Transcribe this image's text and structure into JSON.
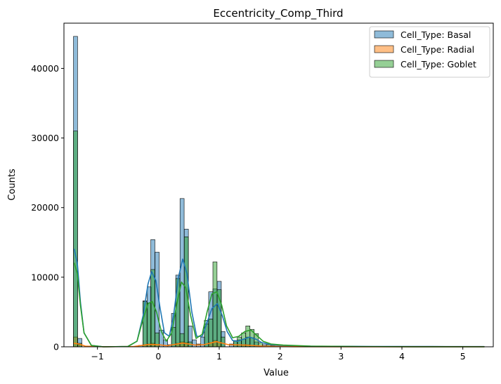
{
  "chart_data": {
    "type": "histogram",
    "title": "Eccentricity_Comp_Third",
    "xlabel": "Value",
    "ylabel": "Counts",
    "xlim": [
      -1.55,
      5.5
    ],
    "ylim": [
      0,
      46500
    ],
    "x_ticks": [
      -1,
      0,
      1,
      2,
      3,
      4,
      5
    ],
    "y_ticks": [
      0,
      10000,
      20000,
      30000,
      40000
    ],
    "legend_position": "upper right",
    "bin_width": 0.0676,
    "series": [
      {
        "name": "Cell_Type: Basal",
        "color": "#1f77b4",
        "bins": [
          {
            "x": -1.36,
            "count": 44600
          },
          {
            "x": -1.29,
            "count": 1200
          },
          {
            "x": -0.29,
            "count": 200
          },
          {
            "x": -0.22,
            "count": 6600
          },
          {
            "x": -0.15,
            "count": 8600
          },
          {
            "x": -0.09,
            "count": 15400
          },
          {
            "x": -0.02,
            "count": 13600
          },
          {
            "x": 0.05,
            "count": 2400
          },
          {
            "x": 0.12,
            "count": 1000
          },
          {
            "x": 0.19,
            "count": 300
          },
          {
            "x": 0.25,
            "count": 4800
          },
          {
            "x": 0.32,
            "count": 10300
          },
          {
            "x": 0.39,
            "count": 21300
          },
          {
            "x": 0.46,
            "count": 16900
          },
          {
            "x": 0.52,
            "count": 3000
          },
          {
            "x": 0.59,
            "count": 1000
          },
          {
            "x": 0.66,
            "count": 400
          },
          {
            "x": 0.73,
            "count": 1400
          },
          {
            "x": 0.79,
            "count": 3800
          },
          {
            "x": 0.86,
            "count": 7900
          },
          {
            "x": 0.93,
            "count": 8300
          },
          {
            "x": 1.0,
            "count": 9400
          },
          {
            "x": 1.06,
            "count": 2200
          },
          {
            "x": 1.2,
            "count": 400
          },
          {
            "x": 1.27,
            "count": 800
          },
          {
            "x": 1.33,
            "count": 1000
          },
          {
            "x": 1.4,
            "count": 1100
          },
          {
            "x": 1.47,
            "count": 1400
          },
          {
            "x": 1.54,
            "count": 1300
          },
          {
            "x": 1.61,
            "count": 700
          },
          {
            "x": 1.74,
            "count": 300
          },
          {
            "x": 1.88,
            "count": 200
          },
          {
            "x": 2.15,
            "count": 150
          },
          {
            "x": 2.5,
            "count": 100
          },
          {
            "x": 3.0,
            "count": 80
          },
          {
            "x": 4.0,
            "count": 50
          },
          {
            "x": 5.3,
            "count": 40
          }
        ],
        "kde": [
          {
            "x": -1.38,
            "y": 14000
          },
          {
            "x": -1.33,
            "y": 12000
          },
          {
            "x": -1.28,
            "y": 6500
          },
          {
            "x": -1.22,
            "y": 2000
          },
          {
            "x": -1.1,
            "y": 200
          },
          {
            "x": -0.9,
            "y": 0
          },
          {
            "x": -0.5,
            "y": 50
          },
          {
            "x": -0.35,
            "y": 800
          },
          {
            "x": -0.25,
            "y": 4500
          },
          {
            "x": -0.17,
            "y": 9000
          },
          {
            "x": -0.11,
            "y": 10800
          },
          {
            "x": -0.04,
            "y": 9500
          },
          {
            "x": 0.03,
            "y": 5500
          },
          {
            "x": 0.1,
            "y": 2000
          },
          {
            "x": 0.18,
            "y": 1500
          },
          {
            "x": 0.25,
            "y": 4500
          },
          {
            "x": 0.33,
            "y": 10000
          },
          {
            "x": 0.4,
            "y": 12600
          },
          {
            "x": 0.47,
            "y": 10500
          },
          {
            "x": 0.55,
            "y": 5000
          },
          {
            "x": 0.63,
            "y": 1500
          },
          {
            "x": 0.72,
            "y": 1500
          },
          {
            "x": 0.8,
            "y": 3500
          },
          {
            "x": 0.88,
            "y": 5500
          },
          {
            "x": 0.97,
            "y": 6200
          },
          {
            "x": 1.05,
            "y": 4500
          },
          {
            "x": 1.13,
            "y": 2200
          },
          {
            "x": 1.22,
            "y": 900
          },
          {
            "x": 1.3,
            "y": 800
          },
          {
            "x": 1.4,
            "y": 1100
          },
          {
            "x": 1.5,
            "y": 1400
          },
          {
            "x": 1.6,
            "y": 1100
          },
          {
            "x": 1.7,
            "y": 600
          },
          {
            "x": 1.85,
            "y": 300
          },
          {
            "x": 2.1,
            "y": 120
          },
          {
            "x": 2.6,
            "y": 70
          },
          {
            "x": 3.5,
            "y": 50
          },
          {
            "x": 4.5,
            "y": 40
          },
          {
            "x": 5.35,
            "y": 30
          }
        ]
      },
      {
        "name": "Cell_Type: Radial",
        "color": "#ff7f0e",
        "bins": [
          {
            "x": -1.36,
            "count": 1400
          },
          {
            "x": -1.29,
            "count": 300
          },
          {
            "x": -0.22,
            "count": 300
          },
          {
            "x": -0.15,
            "count": 400
          },
          {
            "x": -0.09,
            "count": 500
          },
          {
            "x": -0.02,
            "count": 300
          },
          {
            "x": 0.32,
            "count": 500
          },
          {
            "x": 0.39,
            "count": 700
          },
          {
            "x": 0.46,
            "count": 600
          },
          {
            "x": 0.86,
            "count": 600
          },
          {
            "x": 0.93,
            "count": 900
          },
          {
            "x": 1.0,
            "count": 700
          },
          {
            "x": 1.4,
            "count": 300
          },
          {
            "x": 1.47,
            "count": 300
          }
        ],
        "kde": [
          {
            "x": -1.38,
            "y": 500
          },
          {
            "x": -1.3,
            "y": 400
          },
          {
            "x": -1.2,
            "y": 100
          },
          {
            "x": -0.9,
            "y": 0
          },
          {
            "x": -0.4,
            "y": 50
          },
          {
            "x": -0.15,
            "y": 350
          },
          {
            "x": 0.0,
            "y": 300
          },
          {
            "x": 0.15,
            "y": 150
          },
          {
            "x": 0.4,
            "y": 550
          },
          {
            "x": 0.6,
            "y": 250
          },
          {
            "x": 0.75,
            "y": 300
          },
          {
            "x": 0.95,
            "y": 750
          },
          {
            "x": 1.15,
            "y": 300
          },
          {
            "x": 1.45,
            "y": 250
          },
          {
            "x": 1.7,
            "y": 100
          },
          {
            "x": 2.2,
            "y": 20
          },
          {
            "x": 3.0,
            "y": 5
          },
          {
            "x": 5.35,
            "y": 0
          }
        ]
      },
      {
        "name": "Cell_Type: Goblet",
        "color": "#2ca02c",
        "bins": [
          {
            "x": -1.36,
            "count": 31000
          },
          {
            "x": -1.29,
            "count": 500
          },
          {
            "x": -0.22,
            "count": 6500
          },
          {
            "x": -0.15,
            "count": 6300
          },
          {
            "x": -0.09,
            "count": 11100
          },
          {
            "x": -0.02,
            "count": 2000
          },
          {
            "x": 0.25,
            "count": 2800
          },
          {
            "x": 0.32,
            "count": 9800
          },
          {
            "x": 0.39,
            "count": 1900
          },
          {
            "x": 0.46,
            "count": 15800
          },
          {
            "x": 0.52,
            "count": 700
          },
          {
            "x": 0.79,
            "count": 3300
          },
          {
            "x": 0.86,
            "count": 4000
          },
          {
            "x": 0.93,
            "count": 12200
          },
          {
            "x": 1.0,
            "count": 8200
          },
          {
            "x": 1.06,
            "count": 1400
          },
          {
            "x": 1.27,
            "count": 900
          },
          {
            "x": 1.33,
            "count": 1400
          },
          {
            "x": 1.4,
            "count": 2000
          },
          {
            "x": 1.47,
            "count": 3000
          },
          {
            "x": 1.54,
            "count": 2500
          },
          {
            "x": 1.61,
            "count": 1900
          },
          {
            "x": 1.68,
            "count": 600
          },
          {
            "x": 1.81,
            "count": 300
          },
          {
            "x": 2.0,
            "count": 200
          }
        ],
        "kde": [
          {
            "x": -1.38,
            "y": 12000
          },
          {
            "x": -1.33,
            "y": 10500
          },
          {
            "x": -1.28,
            "y": 6000
          },
          {
            "x": -1.22,
            "y": 2000
          },
          {
            "x": -1.1,
            "y": 200
          },
          {
            "x": -0.9,
            "y": 0
          },
          {
            "x": -0.5,
            "y": 50
          },
          {
            "x": -0.35,
            "y": 800
          },
          {
            "x": -0.25,
            "y": 4000
          },
          {
            "x": -0.17,
            "y": 6200
          },
          {
            "x": -0.1,
            "y": 6500
          },
          {
            "x": -0.03,
            "y": 5000
          },
          {
            "x": 0.05,
            "y": 2200
          },
          {
            "x": 0.13,
            "y": 800
          },
          {
            "x": 0.22,
            "y": 2000
          },
          {
            "x": 0.3,
            "y": 6000
          },
          {
            "x": 0.38,
            "y": 9300
          },
          {
            "x": 0.45,
            "y": 8500
          },
          {
            "x": 0.53,
            "y": 4500
          },
          {
            "x": 0.62,
            "y": 1200
          },
          {
            "x": 0.72,
            "y": 1800
          },
          {
            "x": 0.8,
            "y": 5000
          },
          {
            "x": 0.88,
            "y": 7600
          },
          {
            "x": 0.96,
            "y": 7900
          },
          {
            "x": 1.04,
            "y": 6000
          },
          {
            "x": 1.12,
            "y": 3000
          },
          {
            "x": 1.22,
            "y": 1300
          },
          {
            "x": 1.32,
            "y": 1500
          },
          {
            "x": 1.42,
            "y": 2200
          },
          {
            "x": 1.52,
            "y": 2400
          },
          {
            "x": 1.62,
            "y": 1600
          },
          {
            "x": 1.72,
            "y": 800
          },
          {
            "x": 1.85,
            "y": 400
          },
          {
            "x": 2.05,
            "y": 250
          },
          {
            "x": 2.5,
            "y": 100
          },
          {
            "x": 3.2,
            "y": 40
          },
          {
            "x": 4.2,
            "y": 10
          },
          {
            "x": 5.35,
            "y": 0
          }
        ]
      }
    ]
  }
}
